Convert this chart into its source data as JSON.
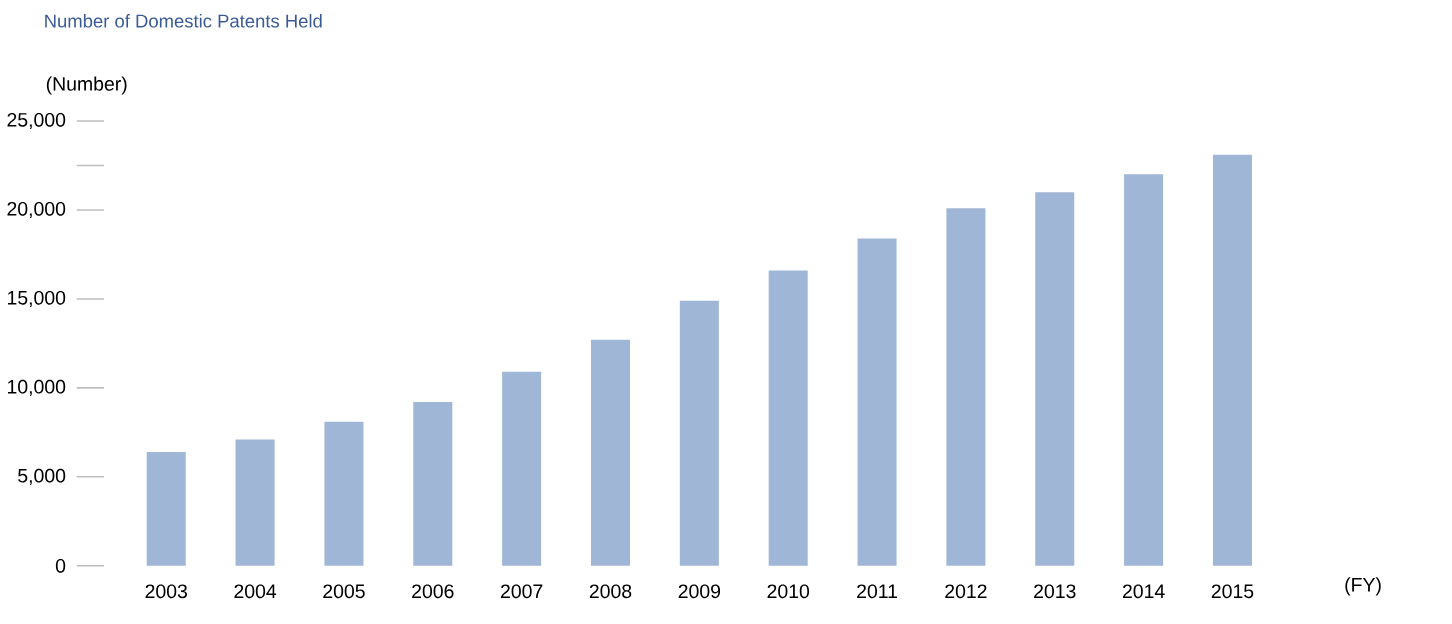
{
  "chart_data": {
    "type": "bar",
    "title": "Number of Domestic Patents Held",
    "ylabel": "(Number)",
    "xlabel": "(FY)",
    "categories": [
      "2003",
      "2004",
      "2005",
      "2006",
      "2007",
      "2008",
      "2009",
      "2010",
      "2011",
      "2012",
      "2013",
      "2014",
      "2015"
    ],
    "values": [
      6400,
      7100,
      8100,
      9200,
      10900,
      12700,
      14900,
      16600,
      18400,
      20100,
      21000,
      22000,
      23100
    ],
    "color": "#9fb6d6",
    "ylim": [
      0,
      25000
    ],
    "yticks": [
      0,
      {
        "value": 5000,
        "label": "5,000"
      },
      {
        "value": 10000,
        "label": "10,000"
      },
      {
        "value": 15000,
        "label": "15,000"
      },
      {
        "value": 20000,
        "label": "20,000"
      },
      {
        "value": 22500,
        "label": null
      },
      {
        "value": 25000,
        "label": "25,000"
      }
    ],
    "grid": false
  }
}
